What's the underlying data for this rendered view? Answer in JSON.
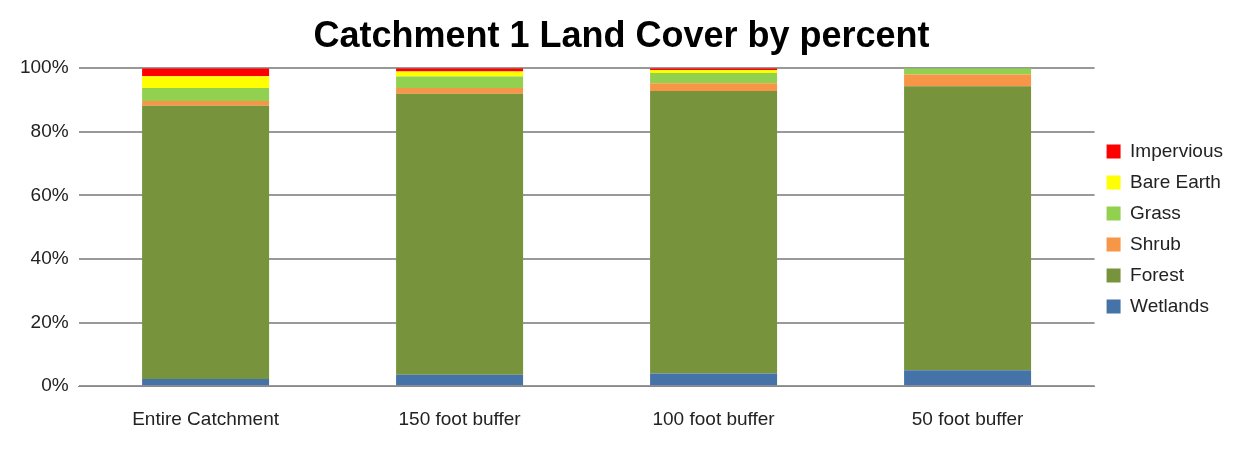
{
  "chart_data": {
    "type": "bar",
    "title": "Catchment 1 Land Cover by percent",
    "stacked": true,
    "categories": [
      "Entire Catchment",
      "150 foot buffer",
      "100 foot buffer",
      "50 foot buffer"
    ],
    "series": [
      {
        "name": "Wetlands",
        "color": "#4572a7",
        "values": [
          2.3,
          3.6,
          4.0,
          5.0
        ]
      },
      {
        "name": "Forest",
        "color": "#77933c",
        "values": [
          85.9,
          88.4,
          88.8,
          89.3
        ]
      },
      {
        "name": "Shrub",
        "color": "#f79646",
        "values": [
          1.5,
          1.8,
          2.5,
          3.7
        ]
      },
      {
        "name": "Grass",
        "color": "#92d050",
        "values": [
          4.1,
          3.6,
          3.2,
          2.0
        ]
      },
      {
        "name": "Bare Earth",
        "color": "#ffff00",
        "values": [
          3.7,
          1.6,
          0.9,
          0
        ]
      },
      {
        "name": "Impervious",
        "color": "#ff0000",
        "values": [
          2.5,
          1.0,
          0.6,
          0
        ]
      }
    ],
    "ylim": [
      0,
      100
    ],
    "yticks": [
      {
        "value": 0,
        "label": "0%"
      },
      {
        "value": 20,
        "label": "20%"
      },
      {
        "value": 40,
        "label": "40%"
      },
      {
        "value": 60,
        "label": "60%"
      },
      {
        "value": 80,
        "label": "80%"
      },
      {
        "value": 100,
        "label": "100%"
      }
    ],
    "grid": "y",
    "legend": "right"
  }
}
